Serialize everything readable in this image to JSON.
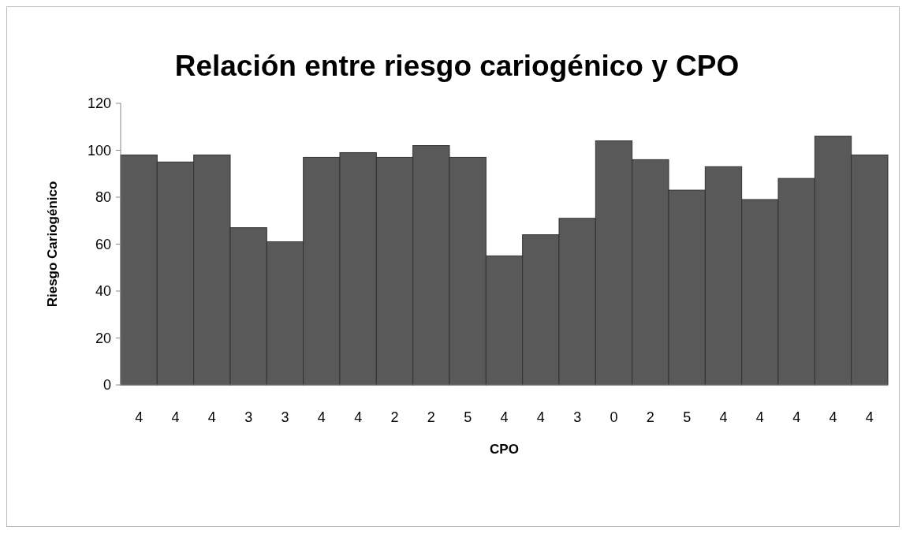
{
  "chart_data": {
    "type": "bar",
    "title": "Relación entre riesgo cariogénico y CPO",
    "xlabel": "CPO",
    "ylabel": "Riesgo Cariogénico",
    "categories": [
      "4",
      "4",
      "4",
      "3",
      "3",
      "4",
      "4",
      "2",
      "2",
      "5",
      "4",
      "4",
      "3",
      "0",
      "2",
      "5",
      "4",
      "4",
      "4",
      "4",
      "4"
    ],
    "values": [
      98,
      95,
      98,
      67,
      61,
      97,
      99,
      97,
      102,
      97,
      55,
      64,
      71,
      104,
      96,
      83,
      93,
      79,
      88,
      106,
      98
    ],
    "color": "#595959",
    "ylim": [
      0,
      120
    ],
    "yticks": [
      0,
      20,
      40,
      60,
      80,
      100,
      120
    ],
    "grid": false
  }
}
